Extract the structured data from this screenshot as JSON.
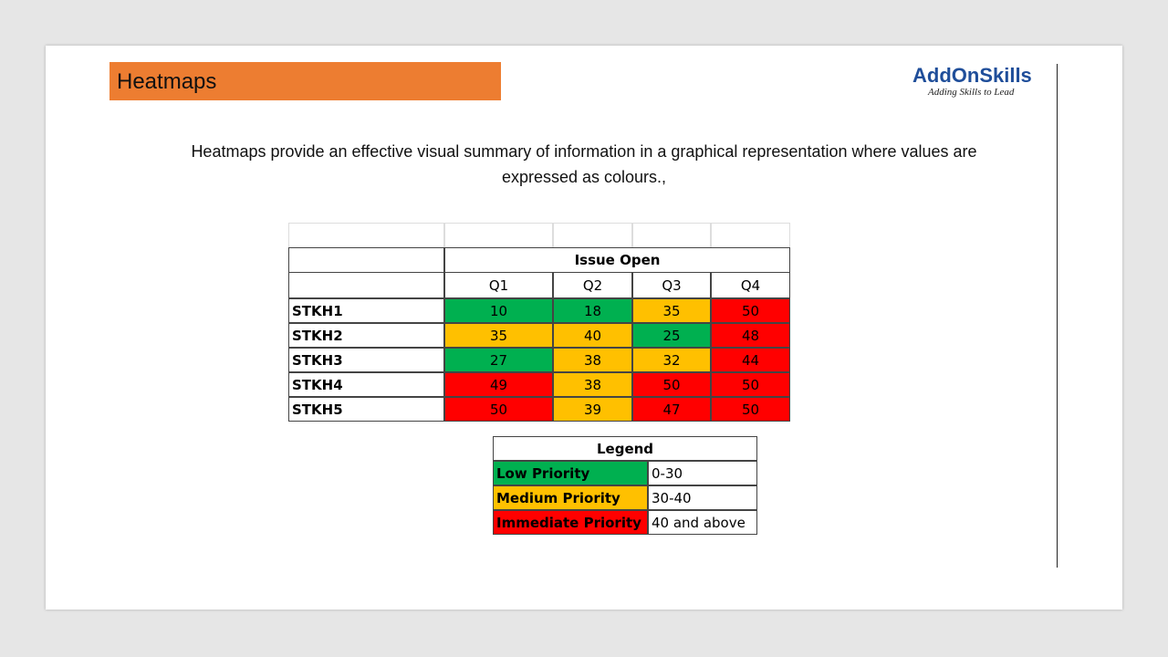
{
  "header": {
    "title": "Heatmaps",
    "logo": "AddOnSkills",
    "tagline": "Adding Skills to Lead"
  },
  "description": "Heatmaps provide an effective visual summary of information in a graphical representation where values are expressed as colours.,",
  "table": {
    "group_header": "Issue Open",
    "columns": [
      "Q1",
      "Q2",
      "Q3",
      "Q4"
    ],
    "rows": [
      {
        "label": "STKH1",
        "values": [
          10,
          18,
          35,
          50
        ],
        "colors": [
          "#00b050",
          "#00b050",
          "#ffc000",
          "#ff0000"
        ]
      },
      {
        "label": "STKH2",
        "values": [
          35,
          40,
          25,
          48
        ],
        "colors": [
          "#ffc000",
          "#ffc000",
          "#00b050",
          "#ff0000"
        ]
      },
      {
        "label": "STKH3",
        "values": [
          27,
          38,
          32,
          44
        ],
        "colors": [
          "#00b050",
          "#ffc000",
          "#ffc000",
          "#ff0000"
        ]
      },
      {
        "label": "STKH4",
        "values": [
          49,
          38,
          50,
          50
        ],
        "colors": [
          "#ff0000",
          "#ffc000",
          "#ff0000",
          "#ff0000"
        ]
      },
      {
        "label": "STKH5",
        "values": [
          50,
          39,
          47,
          50
        ],
        "colors": [
          "#ff0000",
          "#ffc000",
          "#ff0000",
          "#ff0000"
        ]
      }
    ]
  },
  "legend": {
    "title": "Legend",
    "items": [
      {
        "label": "Low Priority",
        "range": "0-30",
        "color": "#00b050"
      },
      {
        "label": "Medium Priority",
        "range": "30-40",
        "color": "#ffc000"
      },
      {
        "label": "Immediate Priority",
        "range": "40 and above",
        "color": "#ff0000"
      }
    ]
  }
}
